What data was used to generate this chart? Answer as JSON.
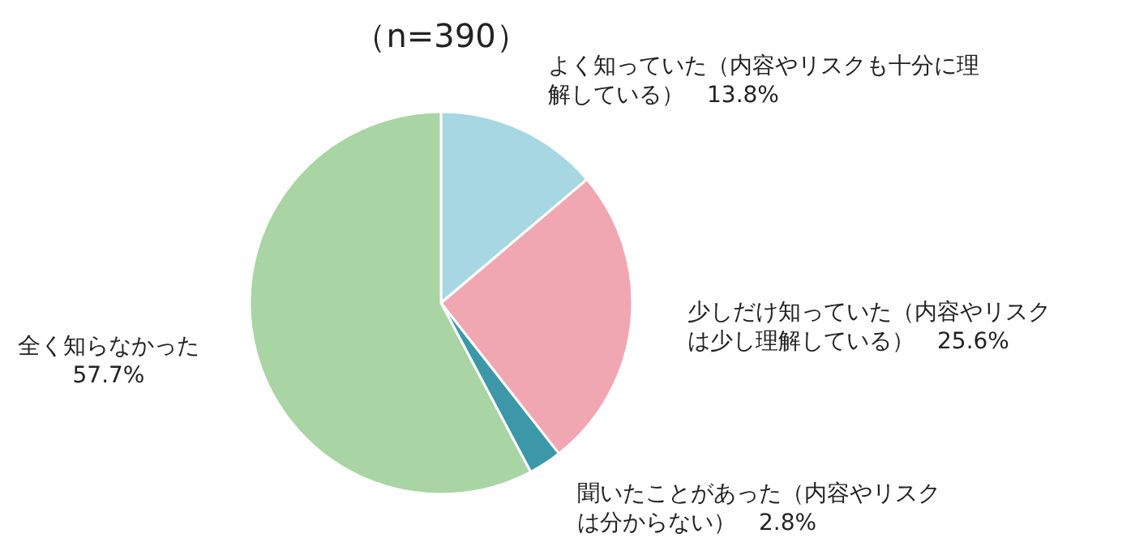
{
  "chart_data": {
    "type": "pie",
    "title": "（n=390）",
    "categories": [
      "よく知っていた（内容やリスクも十分に理解している）",
      "少しだけ知っていた（内容やリスクは少し理解している）",
      "聞いたことがあった（内容やリスクは分からない）",
      "全く知らなかった"
    ],
    "values": [
      13.8,
      25.6,
      2.8,
      57.7
    ],
    "value_labels": [
      "13.8%",
      "25.6%",
      "2.8%",
      "57.7%"
    ],
    "colors": [
      "#a6d7e2",
      "#f0a7b1",
      "#3c98a8",
      "#a9d4a3"
    ],
    "legend": false
  }
}
